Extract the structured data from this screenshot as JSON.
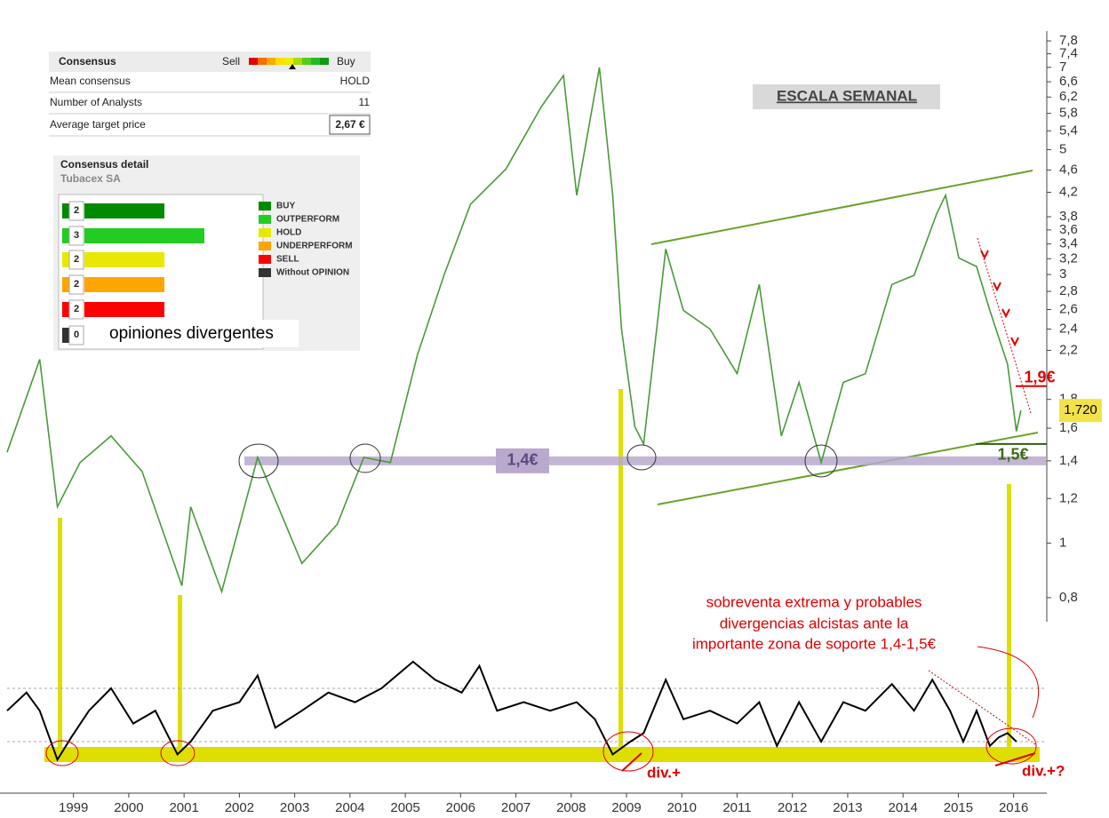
{
  "chart_data": [
    {
      "type": "line",
      "x": [
        1997.8,
        1998.39,
        1998.71,
        1999.12,
        1999.68,
        2000.24,
        2000.96,
        2001.12,
        2001.68,
        2002.33,
        2003.13,
        2003.77,
        2004.25,
        2004.73,
        2005.22,
        2005.7,
        2006.18,
        2006.82,
        2007.46,
        2007.86,
        2008.1,
        2008.51,
        2008.75,
        2008.91,
        2009.15,
        2009.31,
        2009.71,
        2010.03,
        2010.51,
        2011.0,
        2011.4,
        2011.8,
        2012.12,
        2012.52,
        2012.92,
        2013.32,
        2013.8,
        2014.2,
        2014.61,
        2014.77,
        2015.01,
        2015.33,
        2015.57,
        2015.89,
        2016.05,
        2016.13
      ],
      "series": [
        {
          "color": "#4a9a3a",
          "values": [
            1.45,
            2.12,
            1.16,
            1.39,
            1.55,
            1.34,
            0.84,
            1.16,
            0.82,
            1.42,
            0.92,
            1.08,
            1.42,
            1.39,
            2.16,
            2.99,
            4.0,
            4.62,
            5.96,
            6.77,
            4.15,
            7.0,
            4.15,
            2.4,
            1.61,
            1.5,
            3.33,
            2.59,
            2.4,
            2.0,
            2.88,
            1.55,
            1.93,
            1.39,
            1.93,
            2.0,
            2.88,
            2.99,
            3.85,
            4.15,
            3.21,
            3.1,
            2.59,
            2.08,
            1.58,
            1.72
          ]
        }
      ],
      "xlim": [
        1997.8,
        2016.6
      ],
      "xticks": [
        1999,
        2000,
        2001,
        2002,
        2003,
        2004,
        2005,
        2006,
        2007,
        2008,
        2009,
        2010,
        2011,
        2012,
        2013,
        2014,
        2015,
        2016
      ],
      "ylim": [
        0.725,
        8.12
      ],
      "log_scale": true,
      "yticks": [
        {
          "value": 0.8,
          "label": "0,8"
        },
        1,
        {
          "value": 1.2,
          "label": "1,2"
        },
        {
          "value": 1.4,
          "label": "1,4"
        },
        {
          "value": 1.6,
          "label": "1,6"
        },
        {
          "value": 1.8,
          "label": "1,8"
        },
        {
          "value": 2.2,
          "label": "2,2"
        },
        {
          "value": 2.4,
          "label": "2,4"
        },
        {
          "value": 2.6,
          "label": "2,6"
        },
        {
          "value": 2.8,
          "label": "2,8"
        },
        3,
        {
          "value": 3.2,
          "label": "3,2"
        },
        {
          "value": 3.4,
          "label": "3,4"
        },
        {
          "value": 3.6,
          "label": "3,6"
        },
        {
          "value": 3.8,
          "label": "3,8"
        },
        {
          "value": 4.2,
          "label": "4,2"
        },
        {
          "value": 4.6,
          "label": "4,6"
        },
        5,
        {
          "value": 5.4,
          "label": "5,4"
        },
        {
          "value": 5.8,
          "label": "5,8"
        },
        {
          "value": 6.2,
          "label": "6,2"
        },
        {
          "value": 6.6,
          "label": "6,6"
        },
        7,
        {
          "value": 7.4,
          "label": "7,4"
        },
        {
          "value": 7.8,
          "label": "7,8"
        }
      ],
      "support_levels": [
        {
          "value": 1.4,
          "label": "1,4€"
        },
        {
          "value": 1.5,
          "label": "1,5€"
        }
      ],
      "resistance": {
        "value": 1.9,
        "label": "1,9€"
      },
      "last_price": {
        "value": 1.72,
        "label": "1,720"
      }
    },
    {
      "type": "line",
      "x": [
        1997.8,
        1998.15,
        1998.39,
        1998.71,
        1998.96,
        1999.28,
        1999.68,
        2000.08,
        2000.48,
        2000.88,
        2001.12,
        2001.52,
        2002.0,
        2002.33,
        2002.65,
        2003.13,
        2003.61,
        2004.09,
        2004.57,
        2005.14,
        2005.54,
        2006.02,
        2006.34,
        2006.66,
        2007.14,
        2007.62,
        2008.1,
        2008.43,
        2008.75,
        2009.07,
        2009.31,
        2009.71,
        2010.03,
        2010.51,
        2011.0,
        2011.4,
        2011.72,
        2012.12,
        2012.52,
        2012.92,
        2013.32,
        2013.8,
        2014.2,
        2014.53,
        2014.85,
        2015.09,
        2015.33,
        2015.57,
        2015.73,
        2015.89,
        2016.05
      ],
      "series": [
        {
          "color": "#000000",
          "values": [
            54,
            71,
            54,
            8,
            29,
            54,
            75,
            42,
            54,
            13,
            25,
            54,
            62,
            87,
            38,
            54,
            71,
            62,
            75,
            100,
            83,
            71,
            96,
            54,
            62,
            54,
            62,
            46,
            13,
            25,
            33,
            83,
            46,
            54,
            42,
            62,
            21,
            62,
            25,
            62,
            54,
            79,
            54,
            83,
            54,
            25,
            54,
            21,
            29,
            33,
            25
          ]
        }
      ],
      "xlim": [
        1997.8,
        2016.6
      ],
      "ylim": [
        0,
        100
      ],
      "levels": [
        25,
        75
      ]
    }
  ],
  "annotations": [
    "ESCALA SEMANAL",
    "sobreventa extrema y probables",
    "divergencias alcistas ante la",
    "importante zona de soporte 1,4-1,5€",
    "div.+",
    "div.+?"
  ],
  "consensus": {
    "title": "Consensus",
    "sell": "Sell",
    "buy": "Buy",
    "rows": [
      [
        "Mean consensus",
        "HOLD"
      ],
      [
        "Number of Analysts",
        11
      ],
      [
        "Average target price",
        "2,67 €"
      ]
    ]
  },
  "consensus_detail": {
    "title": "Consensus detail",
    "company": "Tubacex SA",
    "items": [
      {
        "label": "BUY",
        "count": 2,
        "color": "#008a00"
      },
      {
        "label": "OUTPERFORM",
        "count": 3,
        "color": "#22cc22"
      },
      {
        "label": "HOLD",
        "count": 2,
        "color": "#e8e800"
      },
      {
        "label": "UNDERPERFORM",
        "count": 2,
        "color": "#ffa500"
      },
      {
        "label": "SELL",
        "count": 2,
        "color": "#ff0000"
      },
      {
        "label": "Without OPINION",
        "count": 0,
        "color": "#333333"
      }
    ],
    "note": "opiniones divergentes"
  }
}
